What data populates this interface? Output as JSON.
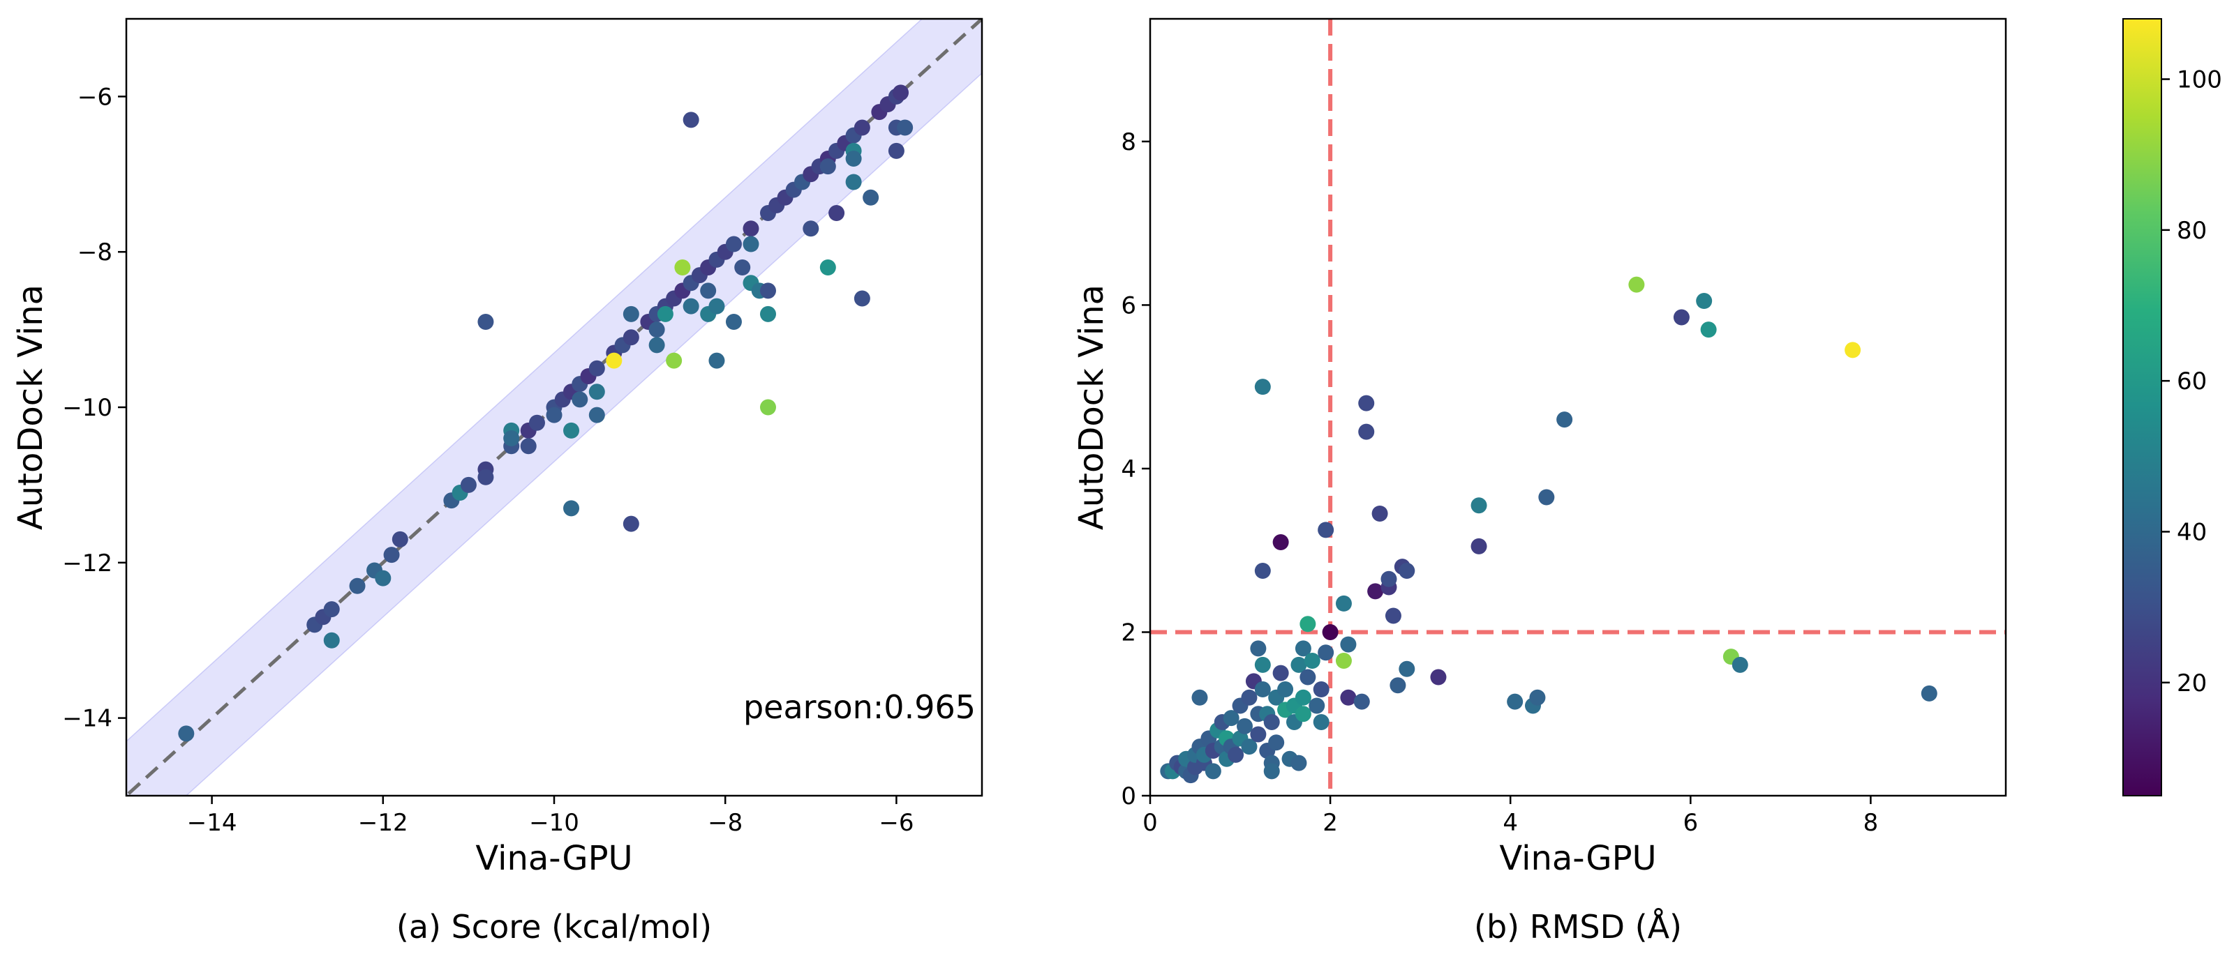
{
  "chart_data": [
    {
      "type": "scatter",
      "title": "",
      "caption": "(a) Score (kcal/mol)",
      "xlabel": "Vina-GPU",
      "ylabel": "AutoDock Vina",
      "xlim": [
        -15,
        -5
      ],
      "ylim": [
        -15,
        -5
      ],
      "xticks": [
        -14,
        -12,
        -10,
        -8,
        -6
      ],
      "yticks": [
        -14,
        -12,
        -10,
        -8,
        -6
      ],
      "xtick_labels": [
        "−14",
        "−12",
        "−10",
        "−8",
        "−6"
      ],
      "ytick_labels": [
        "−14",
        "−12",
        "−10",
        "−8",
        "−6"
      ],
      "annotation": "pearson:0.965",
      "reference_line": {
        "slope": 1,
        "intercept": 0,
        "style": "dashed",
        "color": "#6e6e6e"
      },
      "band": {
        "half_width": 0.7,
        "color": "#6666ee"
      },
      "series": [
        {
          "name": "ligands",
          "points": [
            [
              -14.3,
              -14.2,
              38
            ],
            [
              -12.8,
              -12.8,
              30
            ],
            [
              -12.7,
              -12.7,
              28
            ],
            [
              -12.6,
              -12.6,
              30
            ],
            [
              -12.6,
              -13.0,
              45
            ],
            [
              -12.3,
              -12.3,
              35
            ],
            [
              -12.1,
              -12.1,
              38
            ],
            [
              -12.0,
              -12.2,
              42
            ],
            [
              -11.9,
              -11.9,
              32
            ],
            [
              -11.8,
              -11.7,
              28
            ],
            [
              -11.2,
              -11.2,
              35
            ],
            [
              -11.1,
              -11.1,
              50
            ],
            [
              -11.0,
              -11.0,
              30
            ],
            [
              -10.8,
              -10.8,
              25
            ],
            [
              -10.8,
              -10.9,
              28
            ],
            [
              -10.5,
              -10.5,
              32
            ],
            [
              -10.5,
              -10.3,
              48
            ],
            [
              -10.5,
              -10.4,
              40
            ],
            [
              -10.3,
              -10.3,
              22
            ],
            [
              -10.3,
              -10.5,
              30
            ],
            [
              -10.2,
              -10.2,
              28
            ],
            [
              -10.0,
              -10.0,
              30
            ],
            [
              -10.0,
              -10.1,
              34
            ],
            [
              -9.9,
              -9.9,
              26
            ],
            [
              -9.8,
              -9.8,
              22
            ],
            [
              -9.8,
              -10.3,
              50
            ],
            [
              -9.8,
              -11.3,
              40
            ],
            [
              -9.7,
              -9.7,
              30
            ],
            [
              -9.7,
              -9.9,
              36
            ],
            [
              -9.6,
              -9.6,
              20
            ],
            [
              -9.5,
              -9.5,
              28
            ],
            [
              -9.5,
              -10.1,
              38
            ],
            [
              -9.5,
              -9.8,
              45
            ],
            [
              -9.3,
              -9.3,
              25
            ],
            [
              -9.3,
              -9.4,
              107
            ],
            [
              -9.2,
              -9.2,
              30
            ],
            [
              -9.1,
              -9.1,
              26
            ],
            [
              -9.1,
              -8.8,
              38
            ],
            [
              -9.1,
              -11.5,
              28
            ],
            [
              -8.9,
              -8.9,
              22
            ],
            [
              -8.8,
              -8.8,
              30
            ],
            [
              -8.8,
              -9.0,
              35
            ],
            [
              -8.8,
              -9.2,
              40
            ],
            [
              -8.7,
              -8.7,
              26
            ],
            [
              -8.7,
              -8.8,
              55
            ],
            [
              -8.6,
              -8.6,
              24
            ],
            [
              -8.6,
              -9.4,
              90
            ],
            [
              -8.5,
              -8.5,
              20
            ],
            [
              -8.5,
              -8.2,
              92
            ],
            [
              -8.4,
              -8.4,
              30
            ],
            [
              -8.4,
              -8.7,
              42
            ],
            [
              -8.4,
              -6.3,
              28
            ],
            [
              -8.3,
              -8.3,
              26
            ],
            [
              -8.2,
              -8.2,
              22
            ],
            [
              -8.2,
              -8.5,
              35
            ],
            [
              -8.2,
              -8.8,
              48
            ],
            [
              -8.1,
              -8.1,
              28
            ],
            [
              -8.1,
              -8.7,
              45
            ],
            [
              -8.1,
              -9.4,
              40
            ],
            [
              -8.0,
              -8.0,
              24
            ],
            [
              -7.9,
              -7.9,
              30
            ],
            [
              -7.9,
              -8.9,
              38
            ],
            [
              -7.8,
              -8.2,
              32
            ],
            [
              -7.7,
              -7.7,
              22
            ],
            [
              -7.7,
              -7.9,
              40
            ],
            [
              -7.7,
              -8.4,
              50
            ],
            [
              -7.6,
              -8.5,
              45
            ],
            [
              -7.5,
              -7.5,
              28
            ],
            [
              -7.5,
              -8.8,
              52
            ],
            [
              -7.5,
              -8.5,
              30
            ],
            [
              -7.5,
              -10.0,
              88
            ],
            [
              -7.4,
              -7.4,
              26
            ],
            [
              -7.3,
              -7.3,
              24
            ],
            [
              -7.2,
              -7.2,
              30
            ],
            [
              -7.1,
              -7.1,
              34
            ],
            [
              -7.0,
              -7.0,
              22
            ],
            [
              -7.0,
              -7.7,
              30
            ],
            [
              -6.9,
              -6.9,
              26
            ],
            [
              -6.8,
              -6.8,
              20
            ],
            [
              -6.8,
              -6.9,
              32
            ],
            [
              -6.8,
              -8.2,
              58
            ],
            [
              -6.7,
              -6.7,
              28
            ],
            [
              -6.7,
              -7.5,
              24
            ],
            [
              -6.6,
              -6.6,
              22
            ],
            [
              -6.5,
              -6.5,
              30
            ],
            [
              -6.5,
              -6.7,
              50
            ],
            [
              -6.5,
              -6.8,
              40
            ],
            [
              -6.5,
              -7.1,
              44
            ],
            [
              -6.4,
              -6.4,
              24
            ],
            [
              -6.4,
              -8.6,
              30
            ],
            [
              -6.3,
              -7.3,
              36
            ],
            [
              -6.2,
              -6.2,
              20
            ],
            [
              -6.1,
              -6.1,
              22
            ],
            [
              -6.0,
              -6.0,
              26
            ],
            [
              -6.0,
              -6.4,
              30
            ],
            [
              -6.0,
              -6.7,
              28
            ],
            [
              -5.95,
              -5.95,
              22
            ],
            [
              -5.9,
              -6.4,
              34
            ],
            [
              -10.8,
              -8.9,
              32
            ]
          ]
        }
      ]
    },
    {
      "type": "scatter",
      "title": "",
      "caption": "(b) RMSD (Å)",
      "xlabel": "Vina-GPU",
      "ylabel": "AutoDock Vina",
      "xlim": [
        0,
        9.5
      ],
      "ylim": [
        0,
        9.5
      ],
      "xticks": [
        0,
        2,
        4,
        6,
        8
      ],
      "yticks": [
        0,
        2,
        4,
        6,
        8
      ],
      "xtick_labels": [
        "0",
        "2",
        "4",
        "6",
        "8"
      ],
      "ytick_labels": [
        "0",
        "2",
        "4",
        "6",
        "8"
      ],
      "threshold_lines": {
        "x": 2,
        "y": 2,
        "style": "dashed",
        "color": "#f07070"
      },
      "series": [
        {
          "name": "ligands",
          "points": [
            [
              0.2,
              0.3,
              40
            ],
            [
              0.25,
              0.3,
              50
            ],
            [
              0.3,
              0.4,
              32
            ],
            [
              0.35,
              0.35,
              28
            ],
            [
              0.4,
              0.3,
              38
            ],
            [
              0.4,
              0.45,
              45
            ],
            [
              0.45,
              0.25,
              34
            ],
            [
              0.5,
              0.35,
              30
            ],
            [
              0.5,
              0.5,
              42
            ],
            [
              0.55,
              1.2,
              38
            ],
            [
              0.55,
              0.6,
              36
            ],
            [
              0.6,
              0.4,
              30
            ],
            [
              0.6,
              0.5,
              44
            ],
            [
              0.65,
              0.7,
              35
            ],
            [
              0.7,
              0.3,
              40
            ],
            [
              0.7,
              0.55,
              28
            ],
            [
              0.75,
              0.8,
              52
            ],
            [
              0.8,
              0.6,
              38
            ],
            [
              0.8,
              0.9,
              32
            ],
            [
              0.85,
              0.45,
              46
            ],
            [
              0.85,
              0.7,
              60
            ],
            [
              0.9,
              0.6,
              36
            ],
            [
              0.9,
              0.95,
              40
            ],
            [
              0.95,
              0.5,
              30
            ],
            [
              1.0,
              1.1,
              34
            ],
            [
              1.0,
              0.7,
              48
            ],
            [
              1.05,
              0.85,
              38
            ],
            [
              1.1,
              1.2,
              32
            ],
            [
              1.1,
              0.6,
              42
            ],
            [
              1.15,
              1.4,
              22
            ],
            [
              1.2,
              1.0,
              36
            ],
            [
              1.2,
              0.75,
              30
            ],
            [
              1.2,
              1.8,
              38
            ],
            [
              1.25,
              1.6,
              50
            ],
            [
              1.25,
              2.75,
              30
            ],
            [
              1.25,
              1.3,
              40
            ],
            [
              1.3,
              0.55,
              34
            ],
            [
              1.3,
              1.0,
              46
            ],
            [
              1.35,
              0.4,
              38
            ],
            [
              1.35,
              0.3,
              40
            ],
            [
              1.35,
              0.9,
              32
            ],
            [
              1.4,
              1.2,
              44
            ],
            [
              1.4,
              0.65,
              36
            ],
            [
              1.45,
              1.5,
              28
            ],
            [
              1.45,
              3.1,
              8
            ],
            [
              1.5,
              1.3,
              42
            ],
            [
              1.5,
              1.05,
              62
            ],
            [
              1.55,
              0.45,
              40
            ],
            [
              1.6,
              1.1,
              58
            ],
            [
              1.6,
              0.9,
              45
            ],
            [
              1.65,
              1.6,
              48
            ],
            [
              1.65,
              0.4,
              38
            ],
            [
              1.7,
              1.8,
              42
            ],
            [
              1.7,
              1.2,
              56
            ],
            [
              1.7,
              1.0,
              60
            ],
            [
              1.75,
              2.1,
              66
            ],
            [
              1.75,
              1.45,
              34
            ],
            [
              1.8,
              1.65,
              52
            ],
            [
              1.85,
              1.1,
              38
            ],
            [
              1.9,
              1.3,
              30
            ],
            [
              1.9,
              0.9,
              44
            ],
            [
              1.95,
              1.75,
              36
            ],
            [
              1.95,
              3.25,
              30
            ],
            [
              2.0,
              2.0,
              5
            ],
            [
              2.15,
              1.65,
              90
            ],
            [
              2.15,
              2.35,
              46
            ],
            [
              2.2,
              1.85,
              40
            ],
            [
              2.2,
              1.2,
              20
            ],
            [
              2.35,
              1.15,
              34
            ],
            [
              2.4,
              4.8,
              28
            ],
            [
              2.4,
              4.45,
              28
            ],
            [
              2.5,
              2.5,
              12
            ],
            [
              2.55,
              3.45,
              26
            ],
            [
              2.65,
              2.55,
              22
            ],
            [
              2.65,
              2.65,
              30
            ],
            [
              2.7,
              2.2,
              28
            ],
            [
              2.75,
              1.35,
              36
            ],
            [
              2.8,
              2.8,
              26
            ],
            [
              2.85,
              2.75,
              30
            ],
            [
              2.85,
              1.55,
              40
            ],
            [
              3.2,
              1.45,
              20
            ],
            [
              3.65,
              3.05,
              24
            ],
            [
              3.65,
              3.55,
              48
            ],
            [
              4.05,
              1.15,
              40
            ],
            [
              4.25,
              1.1,
              42
            ],
            [
              4.3,
              1.2,
              38
            ],
            [
              4.4,
              3.65,
              36
            ],
            [
              4.6,
              4.6,
              38
            ],
            [
              5.4,
              6.25,
              90
            ],
            [
              5.9,
              5.85,
              26
            ],
            [
              6.15,
              6.05,
              50
            ],
            [
              6.2,
              5.7,
              58
            ],
            [
              6.45,
              1.7,
              88
            ],
            [
              6.55,
              1.6,
              44
            ],
            [
              7.8,
              5.45,
              107
            ],
            [
              8.65,
              1.25,
              38
            ],
            [
              1.25,
              5.0,
              46
            ]
          ]
        }
      ]
    },
    {
      "type": "colorbar",
      "colormap": "viridis",
      "range": [
        5,
        108
      ],
      "ticks": [
        20,
        40,
        60,
        80,
        100
      ],
      "tick_labels": [
        "20",
        "40",
        "60",
        "80",
        "100"
      ]
    }
  ]
}
